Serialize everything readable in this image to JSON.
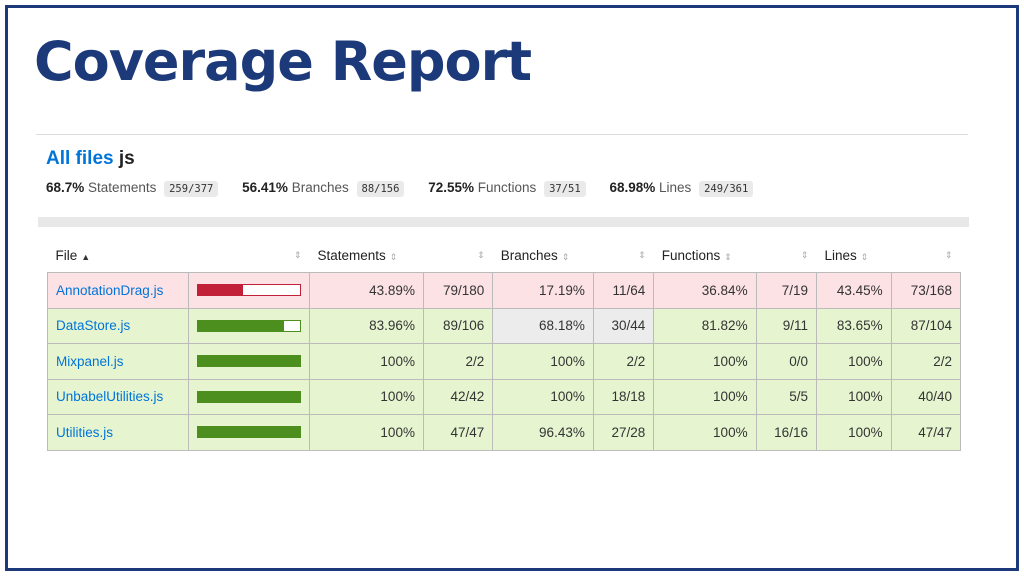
{
  "title": "Coverage Report",
  "breadcrumb": {
    "link": "All files",
    "current": "js"
  },
  "summary": [
    {
      "pct": "68.7%",
      "label": "Statements",
      "fraction": "259/377"
    },
    {
      "pct": "56.41%",
      "label": "Branches",
      "fraction": "88/156"
    },
    {
      "pct": "72.55%",
      "label": "Functions",
      "fraction": "37/51"
    },
    {
      "pct": "68.98%",
      "label": "Lines",
      "fraction": "249/361"
    }
  ],
  "headers": {
    "file": "File",
    "statements": "Statements",
    "branches": "Branches",
    "functions": "Functions",
    "lines": "Lines"
  },
  "colors": {
    "high_fill": "#4d8f1f",
    "low_fill": "#c21f39",
    "high_bg": "#e6f5d0",
    "low_bg": "#fce1e5",
    "medium_bg": "#ececec",
    "link": "#0074d9",
    "frame": "#1c3a7a"
  },
  "rows": [
    {
      "file": "AnnotationDrag.js",
      "level": "low",
      "bar_fill": 0.4389,
      "stmt_pct": "43.89%",
      "stmt_frac": "79/180",
      "br_pct": "17.19%",
      "br_frac": "11/64",
      "fn_pct": "36.84%",
      "fn_frac": "7/19",
      "ln_pct": "43.45%",
      "ln_frac": "73/168"
    },
    {
      "file": "DataStore.js",
      "level": "high",
      "bar_fill": 0.8396,
      "stmt_pct": "83.96%",
      "stmt_frac": "89/106",
      "br_pct": "68.18%",
      "br_frac": "30/44",
      "br_medium": true,
      "fn_pct": "81.82%",
      "fn_frac": "9/11",
      "ln_pct": "83.65%",
      "ln_frac": "87/104"
    },
    {
      "file": "Mixpanel.js",
      "level": "high",
      "bar_fill": 1,
      "stmt_pct": "100%",
      "stmt_frac": "2/2",
      "br_pct": "100%",
      "br_frac": "2/2",
      "fn_pct": "100%",
      "fn_frac": "0/0",
      "ln_pct": "100%",
      "ln_frac": "2/2"
    },
    {
      "file": "UnbabelUtilities.js",
      "level": "high",
      "bar_fill": 1,
      "stmt_pct": "100%",
      "stmt_frac": "42/42",
      "br_pct": "100%",
      "br_frac": "18/18",
      "fn_pct": "100%",
      "fn_frac": "5/5",
      "ln_pct": "100%",
      "ln_frac": "40/40"
    },
    {
      "file": "Utilities.js",
      "level": "high",
      "bar_fill": 1,
      "stmt_pct": "100%",
      "stmt_frac": "47/47",
      "br_pct": "96.43%",
      "br_frac": "27/28",
      "fn_pct": "100%",
      "fn_frac": "16/16",
      "ln_pct": "100%",
      "ln_frac": "47/47"
    }
  ]
}
